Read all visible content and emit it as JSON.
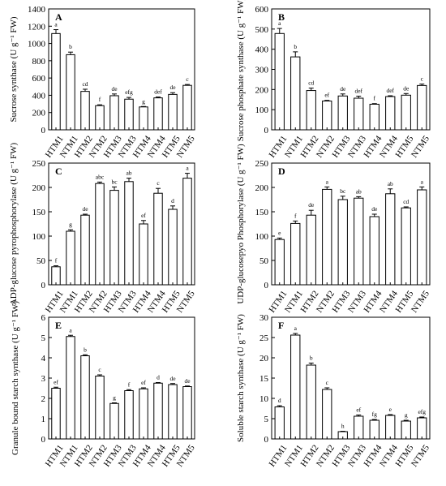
{
  "chart_data": [
    {
      "type": "bar",
      "panel_label": "A",
      "ylabel": "Sucrose synthase (U g⁻¹ FW)",
      "categories": [
        "HTM1",
        "NTM1",
        "HTM2",
        "NTM2",
        "HTM3",
        "NTM3",
        "HTM4",
        "NTM4",
        "HTM5",
        "NTM5"
      ],
      "values": [
        1115,
        870,
        445,
        280,
        395,
        355,
        265,
        370,
        410,
        515
      ],
      "errors": [
        45,
        30,
        25,
        10,
        20,
        20,
        5,
        10,
        20,
        10
      ],
      "significance": [
        "a",
        "b",
        "cd",
        "f",
        "de",
        "efg",
        "g",
        "def",
        "de",
        "c"
      ],
      "ylim": [
        0,
        1400
      ],
      "yticks": [
        0,
        200,
        400,
        600,
        800,
        1000,
        1200,
        1400
      ]
    },
    {
      "type": "bar",
      "panel_label": "B",
      "ylabel": "Sucrose phosphate synthase (U g⁻¹ FW)",
      "categories": [
        "HTM1",
        "NTM1",
        "HTM2",
        "NTM2",
        "HTM3",
        "NTM3",
        "HTM4",
        "NTM4",
        "HTM5",
        "NTM5"
      ],
      "values": [
        478,
        362,
        195,
        143,
        168,
        157,
        127,
        165,
        172,
        220
      ],
      "errors": [
        25,
        25,
        12,
        3,
        10,
        10,
        3,
        4,
        8,
        7
      ],
      "significance": [
        "a",
        "b",
        "cd",
        "ef",
        "de",
        "def",
        "f",
        "def",
        "de",
        "c"
      ],
      "ylim": [
        0,
        600
      ],
      "yticks": [
        0,
        100,
        200,
        300,
        400,
        500,
        600
      ]
    },
    {
      "type": "bar",
      "panel_label": "C",
      "ylabel": "ADP-glucose pyrophosphorylase (U g⁻¹ FW)",
      "categories": [
        "HTM1",
        "NTM1",
        "HTM2",
        "NTM2",
        "HTM3",
        "NTM3",
        "HTM4",
        "NTM4",
        "HTM5",
        "NTM5"
      ],
      "values": [
        37,
        110,
        143,
        208,
        194,
        212,
        125,
        188,
        155,
        219
      ],
      "errors": [
        2,
        3,
        2,
        3,
        7,
        7,
        7,
        10,
        7,
        10
      ],
      "significance": [
        "f",
        "g",
        "de",
        "abc",
        "bc",
        "ab",
        "ef",
        "c",
        "d",
        "a"
      ],
      "ylim": [
        0,
        250
      ],
      "yticks": [
        0,
        50,
        100,
        150,
        200,
        250
      ]
    },
    {
      "type": "bar",
      "panel_label": "D",
      "ylabel": "UDP-glucosepyo Phosphorylase (U g⁻¹ FW)",
      "categories": [
        "HTM1",
        "NTM1",
        "HTM2",
        "NTM2",
        "HTM3",
        "NTM3",
        "HTM4",
        "NTM4",
        "HTM5",
        "NTM5"
      ],
      "values": [
        93,
        126,
        143,
        196,
        175,
        178,
        140,
        187,
        158,
        195
      ],
      "errors": [
        3,
        5,
        10,
        5,
        7,
        3,
        5,
        10,
        2,
        6
      ],
      "significance": [
        "e",
        "f",
        "de",
        "a",
        "bc",
        "ab",
        "de",
        "ab",
        "cd",
        "a"
      ],
      "ylim": [
        0,
        250
      ],
      "yticks": [
        0,
        50,
        100,
        150,
        200,
        250
      ]
    },
    {
      "type": "bar",
      "panel_label": "E",
      "ylabel": "Granule bound starch synthase (U g⁻¹ FW)",
      "categories": [
        "HTM1",
        "NTM1",
        "HTM2",
        "NTM2",
        "HTM3",
        "NTM3",
        "HTM4",
        "NTM4",
        "HTM5",
        "NTM5"
      ],
      "values": [
        2.5,
        5.05,
        4.1,
        3.1,
        1.75,
        2.38,
        2.47,
        2.75,
        2.68,
        2.58
      ],
      "errors": [
        0.05,
        0.06,
        0.05,
        0.06,
        0.03,
        0.05,
        0.05,
        0.03,
        0.05,
        0.03
      ],
      "significance": [
        "ef",
        "a",
        "b",
        "c",
        "g",
        "f",
        "ef",
        "d",
        "de",
        "de"
      ],
      "ylim": [
        0,
        6
      ],
      "yticks": [
        0,
        1,
        2,
        3,
        4,
        5,
        6
      ]
    },
    {
      "type": "bar",
      "panel_label": "F",
      "ylabel": "Soluble starch synthase (U g⁻¹ FW)",
      "categories": [
        "HTM1",
        "NTM1",
        "HTM2",
        "NTM2",
        "HTM3",
        "NTM3",
        "HTM4",
        "NTM4",
        "HTM5",
        "NTM5"
      ],
      "values": [
        7.9,
        25.6,
        18.2,
        12.2,
        1.8,
        5.6,
        4.6,
        5.8,
        4.4,
        5.2
      ],
      "errors": [
        0.3,
        0.4,
        0.5,
        0.4,
        0.1,
        0.3,
        0.2,
        0.2,
        0.2,
        0.2
      ],
      "significance": [
        "d",
        "a",
        "b",
        "c",
        "h",
        "ef",
        "fg",
        "e",
        "g",
        "efg"
      ],
      "ylim": [
        0,
        30
      ],
      "yticks": [
        0,
        5,
        10,
        15,
        20,
        25,
        30
      ]
    }
  ]
}
